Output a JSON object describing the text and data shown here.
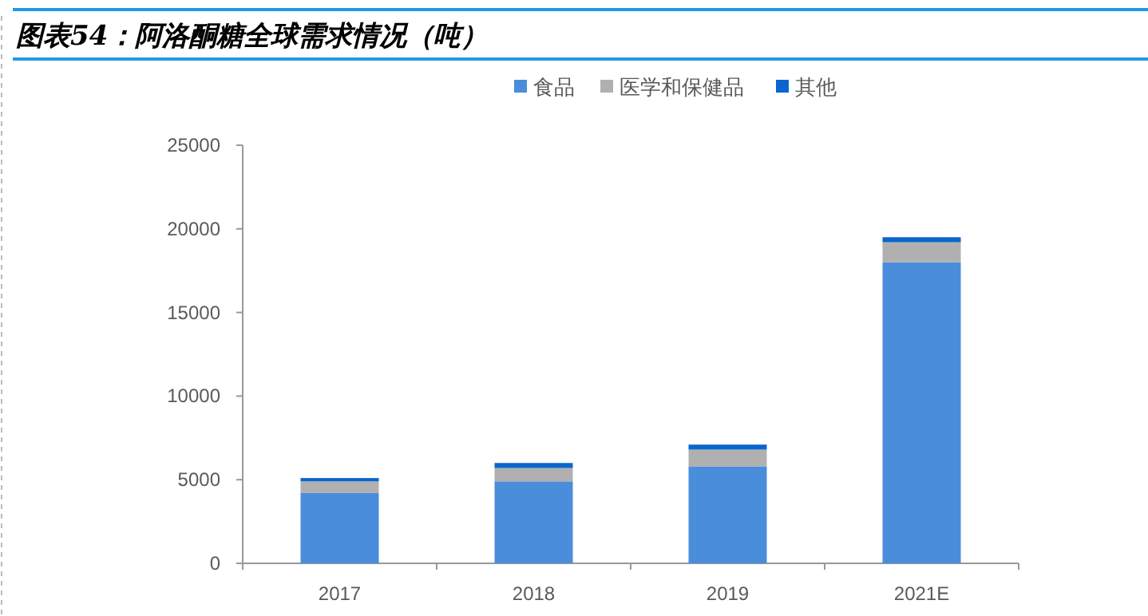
{
  "chart_data": {
    "type": "bar",
    "title": "图表54：阿洛酮糖全球需求情况（吨）",
    "categories": [
      "2017",
      "2018",
      "2019",
      "2021E"
    ],
    "stacked": true,
    "legend": "top",
    "series": [
      {
        "name": "食品",
        "color": "#4a8ddb",
        "values": [
          4200,
          4900,
          5800,
          18000
        ]
      },
      {
        "name": "医学和保健品",
        "color": "#b0b0b0",
        "values": [
          700,
          800,
          1000,
          1200
        ]
      },
      {
        "name": "其他",
        "color": "#0a66cc",
        "values": [
          200,
          300,
          300,
          300
        ]
      }
    ],
    "ylim": [
      0,
      25000
    ],
    "yticks": [
      0,
      5000,
      10000,
      15000,
      20000,
      25000
    ],
    "grid": false
  }
}
